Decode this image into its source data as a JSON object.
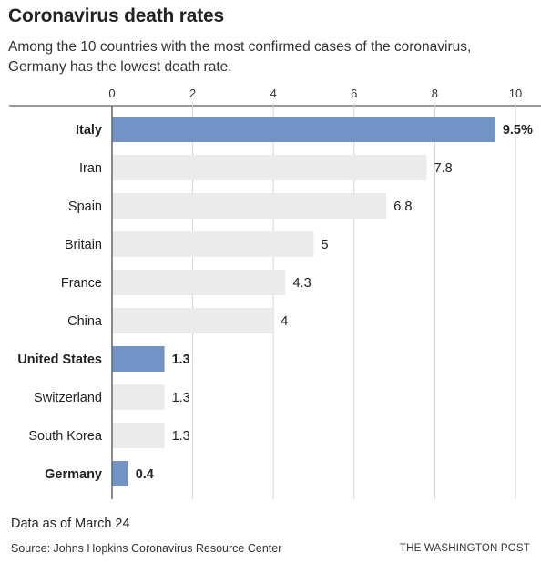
{
  "title": "Coronavirus death rates",
  "subtitle": "Among the 10 countries with the most confirmed cases of the coronavirus, Germany has the lowest death rate.",
  "note": "Data as of March 24",
  "source": "Source: Johns Hopkins Coronavirus Resource Center",
  "credit": "THE WASHINGTON POST",
  "chart_data": {
    "type": "bar",
    "orientation": "horizontal",
    "categories": [
      "Italy",
      "Iran",
      "Spain",
      "Britain",
      "France",
      "China",
      "United States",
      "Switzerland",
      "South Korea",
      "Germany"
    ],
    "values": [
      9.5,
      7.8,
      6.8,
      5,
      4.3,
      4,
      1.3,
      1.3,
      1.3,
      0.4
    ],
    "value_labels": [
      "9.5%",
      "7.8",
      "6.8",
      "5",
      "4.3",
      "4",
      "1.3",
      "1.3",
      "1.3",
      "0.4"
    ],
    "highlighted": [
      "Italy",
      "United States",
      "Germany"
    ],
    "xticks": [
      0,
      2,
      4,
      6,
      8,
      10
    ],
    "xlim": [
      0,
      10
    ],
    "xaxis_position": "top",
    "grid": true,
    "colors": {
      "highlight": "#7393c7",
      "default": "#ebebeb",
      "grid": "#d4d4d4",
      "axis": "#333333"
    }
  }
}
